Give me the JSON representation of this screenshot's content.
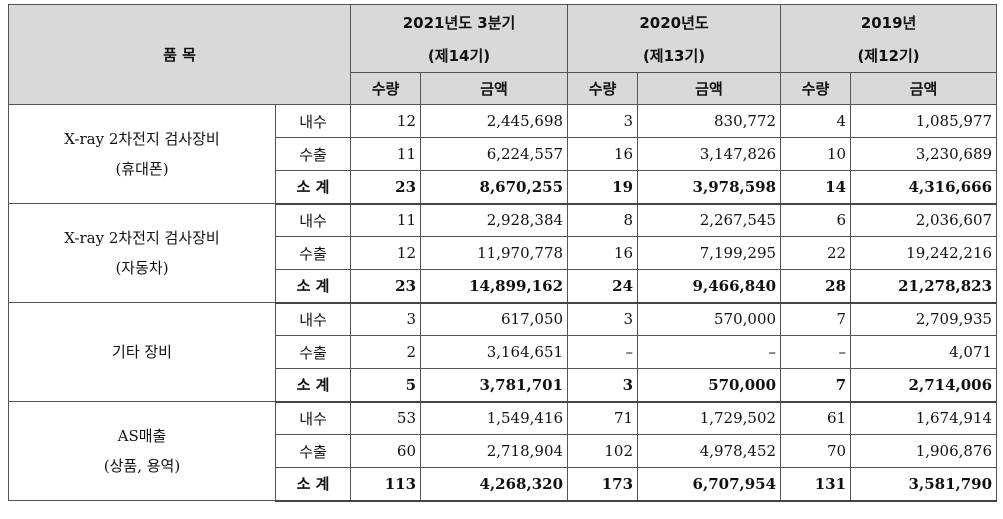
{
  "header": {
    "item": "품 목",
    "periods": [
      {
        "title": "2021년도 3분기",
        "sub": "(제14기)"
      },
      {
        "title": "2020년도",
        "sub": "(제13기)"
      },
      {
        "title": "2019년",
        "sub": "(제12기)"
      }
    ],
    "qty": "수량",
    "amount": "금액"
  },
  "groups": [
    {
      "name_line1": "X-ray 2차전지 검사장비",
      "name_line2": "(휴대폰)",
      "rows": [
        {
          "type": "내수",
          "v": [
            "12",
            "2,445,698",
            "3",
            "830,772",
            "4",
            "1,085,977"
          ]
        },
        {
          "type": "수출",
          "v": [
            "11",
            "6,224,557",
            "16",
            "3,147,826",
            "10",
            "3,230,689"
          ]
        },
        {
          "type": "소 계",
          "v": [
            "23",
            "8,670,255",
            "19",
            "3,978,598",
            "14",
            "4,316,666"
          ]
        }
      ]
    },
    {
      "name_line1": "X-ray 2차전지 검사장비",
      "name_line2": "(자동차)",
      "rows": [
        {
          "type": "내수",
          "v": [
            "11",
            "2,928,384",
            "8",
            "2,267,545",
            "6",
            "2,036,607"
          ]
        },
        {
          "type": "수출",
          "v": [
            "12",
            "11,970,778",
            "16",
            "7,199,295",
            "22",
            "19,242,216"
          ]
        },
        {
          "type": "소 계",
          "v": [
            "23",
            "14,899,162",
            "24",
            "9,466,840",
            "28",
            "21,278,823"
          ]
        }
      ]
    },
    {
      "name_line1": "기타 장비",
      "name_line2": "",
      "rows": [
        {
          "type": "내수",
          "v": [
            "3",
            "617,050",
            "3",
            "570,000",
            "7",
            "2,709,935"
          ]
        },
        {
          "type": "수출",
          "v": [
            "2",
            "3,164,651",
            "–",
            "–",
            "–",
            "4,071"
          ]
        },
        {
          "type": "소 계",
          "v": [
            "5",
            "3,781,701",
            "3",
            "570,000",
            "7",
            "2,714,006"
          ]
        }
      ]
    },
    {
      "name_line1": "AS매출",
      "name_line2": "(상품, 용역)",
      "rows": [
        {
          "type": "내수",
          "v": [
            "53",
            "1,549,416",
            "71",
            "1,729,502",
            "61",
            "1,674,914"
          ]
        },
        {
          "type": "수출",
          "v": [
            "60",
            "2,718,904",
            "102",
            "4,978,452",
            "70",
            "1,906,876"
          ]
        },
        {
          "type": "소 계",
          "v": [
            "113",
            "4,268,320",
            "173",
            "6,707,954",
            "131",
            "3,581,790"
          ]
        }
      ]
    }
  ]
}
